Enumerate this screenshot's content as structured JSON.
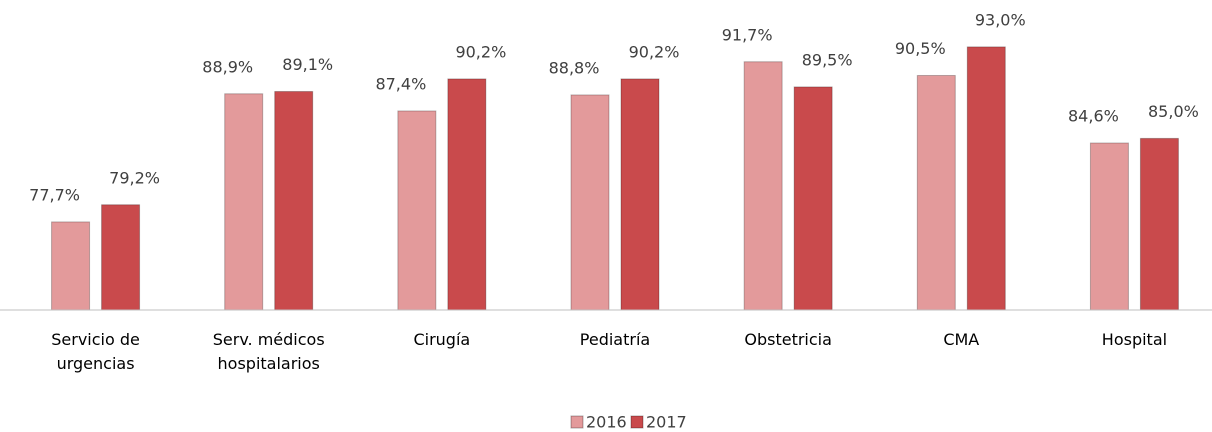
{
  "chart_data": {
    "type": "bar",
    "categories": [
      "Servicio de urgencias",
      "Serv. médicos hospitalarios",
      "Cirugía",
      "Pediatría",
      "Obstetricia",
      "CMA",
      "Hospital"
    ],
    "series": [
      {
        "name": "2016",
        "color": "#e39a9b",
        "values": [
          77.7,
          88.9,
          87.4,
          88.8,
          91.7,
          90.5,
          84.6
        ],
        "value_labels": [
          "77,7%",
          "88,9%",
          "87,4%",
          "88,8%",
          "91,7%",
          "90,5%",
          "84,6%"
        ]
      },
      {
        "name": "2017",
        "color": "#c94a4c",
        "values": [
          79.2,
          89.1,
          90.2,
          90.2,
          89.5,
          93.0,
          85.0
        ],
        "value_labels": [
          "79,2%",
          "89,1%",
          "90,2%",
          "90,2%",
          "89,5%",
          "93,0%",
          "85,0%"
        ]
      }
    ],
    "ylim": [
      70,
      95
    ],
    "legend": "bottom"
  }
}
